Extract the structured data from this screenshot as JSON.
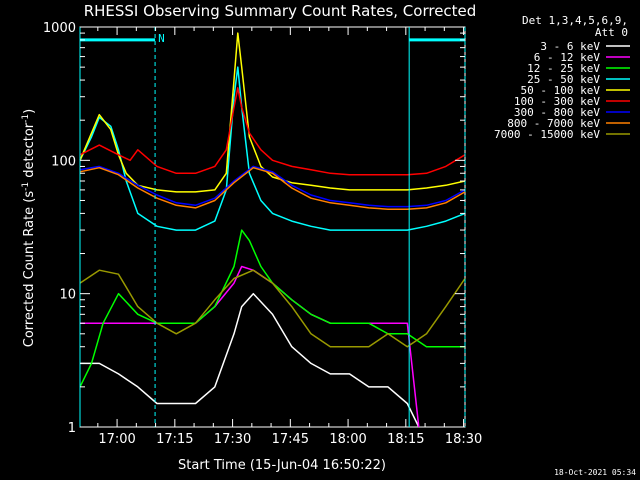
{
  "chart_data": {
    "type": "line",
    "title": "RHESSI Observing Summary Count Rates, Corrected",
    "xlabel": "Start Time (15-Jun-04 16:50:22)",
    "ylabel_main": "Corrected Count Rate (s",
    "ylabel_sup1": "-1",
    "ylabel_mid": " detector",
    "ylabel_sup2": "-1",
    "ylabel_end": ")",
    "x_range_minutes": [
      0,
      100
    ],
    "ylim": [
      1,
      1000
    ],
    "y_scale": "log",
    "x_ticks": [
      {
        "min": 9.63,
        "label": "17:00"
      },
      {
        "min": 24.63,
        "label": "17:15"
      },
      {
        "min": 39.63,
        "label": "17:30"
      },
      {
        "min": 54.63,
        "label": "17:45"
      },
      {
        "min": 69.63,
        "label": "18:00"
      },
      {
        "min": 84.63,
        "label": "18:15"
      },
      {
        "min": 99.63,
        "label": "18:30"
      }
    ],
    "y_ticks": [
      {
        "value": 1,
        "label": "1"
      },
      {
        "value": 10,
        "label": "10"
      },
      {
        "value": 100,
        "label": "100"
      },
      {
        "value": 1000,
        "label": "1000"
      }
    ],
    "legend_header": [
      "Det 1,3,4,5,6,9,",
      "Att 0"
    ],
    "legend_position": "right",
    "series": [
      {
        "name": "3 - 6 keV",
        "color": "#ffffff",
        "x": [
          0,
          5,
          10,
          15,
          20,
          25,
          30,
          35,
          40,
          42,
          45,
          50,
          55,
          60,
          65,
          70,
          75,
          78,
          80,
          85,
          88
        ],
        "y": [
          3,
          3,
          2.5,
          2,
          1.5,
          1.5,
          1.5,
          2,
          5,
          8,
          10,
          7,
          4,
          3,
          2.5,
          2.5,
          2,
          2,
          2,
          1.5,
          1
        ]
      },
      {
        "name": "6 - 12 keV",
        "color": "#ff00ff",
        "x": [
          0,
          5,
          10,
          15,
          20,
          25,
          30,
          35,
          40,
          42,
          45,
          50,
          55,
          60,
          65,
          70,
          75,
          80,
          85,
          88
        ],
        "y": [
          6,
          6,
          6,
          6,
          6,
          6,
          6,
          8,
          12,
          16,
          15,
          12,
          9,
          7,
          6,
          6,
          6,
          6,
          6,
          1
        ]
      },
      {
        "name": "12 - 25 keV",
        "color": "#00ff00",
        "x": [
          0,
          3,
          6,
          10,
          15,
          20,
          25,
          30,
          35,
          40,
          42,
          44,
          47,
          50,
          55,
          60,
          65,
          70,
          75,
          80,
          85,
          90,
          95,
          100
        ],
        "y": [
          2,
          3,
          6,
          10,
          7,
          6,
          6,
          6,
          8,
          16,
          30,
          25,
          16,
          12,
          9,
          7,
          6,
          6,
          6,
          5,
          5,
          4,
          4,
          4
        ]
      },
      {
        "name": "25 - 50 keV",
        "color": "#00ffff",
        "x": [
          0,
          3,
          5,
          8,
          10,
          12,
          15,
          20,
          25,
          30,
          35,
          38,
          40,
          41,
          42,
          44,
          47,
          50,
          55,
          60,
          65,
          70,
          75,
          80,
          85,
          90,
          95,
          100
        ],
        "y": [
          100,
          150,
          210,
          180,
          120,
          70,
          40,
          32,
          30,
          30,
          35,
          60,
          300,
          500,
          250,
          80,
          50,
          40,
          35,
          32,
          30,
          30,
          30,
          30,
          30,
          32,
          35,
          40
        ]
      },
      {
        "name": "50 - 100 keV",
        "color": "#ffff00",
        "x": [
          0,
          3,
          5,
          8,
          10,
          12,
          15,
          20,
          25,
          30,
          35,
          38,
          40,
          41,
          42,
          44,
          47,
          50,
          55,
          60,
          65,
          70,
          75,
          80,
          85,
          90,
          95,
          100
        ],
        "y": [
          100,
          160,
          220,
          170,
          110,
          80,
          65,
          60,
          58,
          58,
          60,
          80,
          400,
          900,
          500,
          150,
          90,
          75,
          68,
          65,
          62,
          60,
          60,
          60,
          60,
          62,
          65,
          70
        ]
      },
      {
        "name": "100 - 300 keV",
        "color": "#ff0000",
        "x": [
          0,
          5,
          10,
          13,
          15,
          20,
          25,
          30,
          35,
          38,
          40,
          41,
          42,
          44,
          47,
          50,
          55,
          60,
          65,
          70,
          75,
          80,
          85,
          90,
          95,
          100
        ],
        "y": [
          110,
          130,
          110,
          100,
          120,
          90,
          80,
          80,
          90,
          120,
          250,
          350,
          250,
          160,
          120,
          100,
          90,
          85,
          80,
          78,
          78,
          78,
          78,
          80,
          90,
          110
        ]
      },
      {
        "name": "300 - 800 keV",
        "color": "#0000ff",
        "x": [
          0,
          5,
          10,
          15,
          20,
          25,
          30,
          35,
          40,
          45,
          50,
          55,
          60,
          65,
          70,
          75,
          80,
          85,
          90,
          95,
          100
        ],
        "y": [
          85,
          90,
          80,
          65,
          55,
          48,
          46,
          52,
          70,
          90,
          82,
          65,
          55,
          50,
          48,
          46,
          45,
          45,
          46,
          50,
          60
        ]
      },
      {
        "name": "800 - 7000 keV",
        "color": "#ff8000",
        "x": [
          0,
          5,
          10,
          15,
          20,
          25,
          30,
          35,
          40,
          45,
          50,
          55,
          60,
          65,
          70,
          75,
          80,
          85,
          90,
          95,
          100
        ],
        "y": [
          82,
          88,
          78,
          62,
          52,
          46,
          44,
          50,
          68,
          88,
          80,
          62,
          52,
          48,
          46,
          44,
          43,
          43,
          44,
          48,
          58
        ]
      },
      {
        "name": "7000 - 15000 keV",
        "color": "#999900",
        "x": [
          0,
          5,
          10,
          15,
          20,
          25,
          30,
          35,
          40,
          45,
          50,
          55,
          60,
          65,
          70,
          75,
          80,
          85,
          90,
          95,
          100
        ],
        "y": [
          12,
          15,
          14,
          8,
          6,
          5,
          6,
          9,
          13,
          15,
          12,
          8,
          5,
          4,
          4,
          4,
          5,
          4,
          5,
          8,
          13
        ]
      }
    ],
    "annotations": [
      {
        "type": "vline",
        "x_min": 0,
        "color": "#00ffff"
      },
      {
        "type": "vline_dashed",
        "x_min": 19.5,
        "color": "#00ffff"
      },
      {
        "type": "vline",
        "x_min": 85.5,
        "color": "#00ffff"
      },
      {
        "type": "vline_dashed",
        "x_min": 100,
        "color": "#00ffff"
      },
      {
        "type": "hbar",
        "x_start": 0,
        "x_end": 19.5,
        "value": 800,
        "color": "#00ffff",
        "label": "N"
      },
      {
        "type": "hbar",
        "x_start": 85.5,
        "x_end": 100,
        "value": 800,
        "color": "#00ffff",
        "label": ""
      }
    ]
  },
  "timestamp": "18-Oct-2021 05:34"
}
